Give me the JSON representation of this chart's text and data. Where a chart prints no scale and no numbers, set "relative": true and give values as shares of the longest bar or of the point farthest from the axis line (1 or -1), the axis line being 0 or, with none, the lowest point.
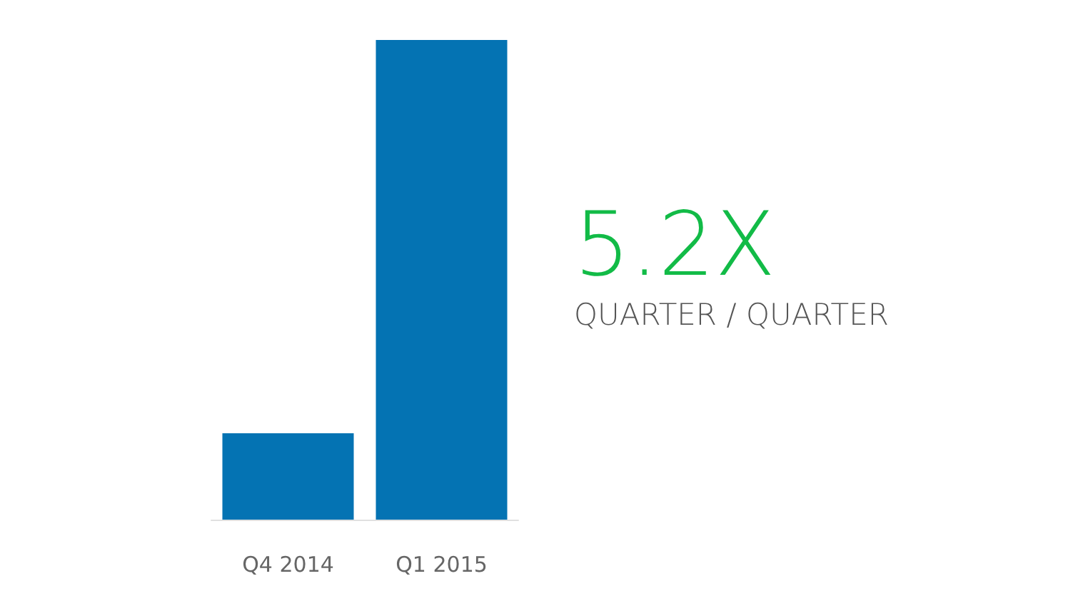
{
  "chart_data": {
    "type": "bar",
    "relative": true,
    "categories": [
      "Q4 2014",
      "Q1 2015"
    ],
    "values": [
      0.18,
      1
    ],
    "color": "#0473b3",
    "annotations": [
      "5.2X",
      "QUARTER / QUARTER"
    ]
  }
}
